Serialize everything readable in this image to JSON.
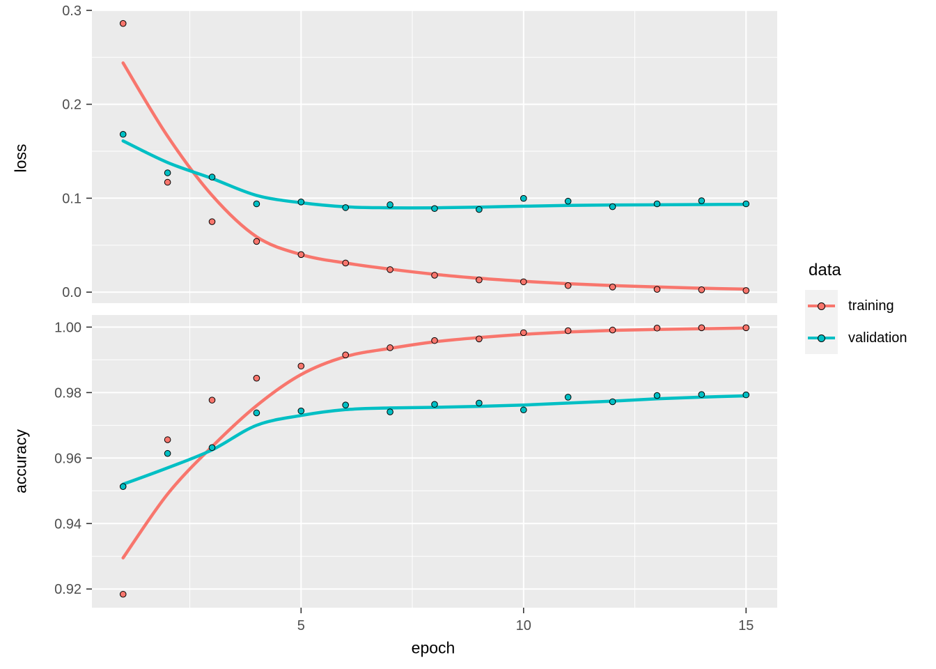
{
  "figure": {
    "kind": "ggplot2 faceted training-history plot"
  },
  "colors": {
    "training": "#F8766D",
    "validation": "#00BFC4",
    "panel_background": "#EBEBEB",
    "gridline": "#FFFFFF",
    "axis_text": "#4D4D4D",
    "tick_mark": "#333333",
    "legend_key_background": "#F2F2F2"
  },
  "legend": {
    "title": "data",
    "entries": [
      {
        "label": "training",
        "color": "#F8766D"
      },
      {
        "label": "validation",
        "color": "#00BFC4"
      }
    ]
  },
  "x_axis": {
    "title": "epoch",
    "tick_labels": [
      "5",
      "10",
      "15"
    ],
    "tick_values": [
      5,
      10,
      15
    ],
    "minor_values": [
      2.5,
      7.5,
      12.5
    ],
    "range": [
      0.3,
      15.7
    ]
  },
  "chart_data": [
    {
      "type": "scatter",
      "panel": "loss",
      "ylabel": "loss",
      "xlabel": "epoch",
      "x": [
        1,
        2,
        3,
        4,
        5,
        6,
        7,
        8,
        9,
        10,
        11,
        12,
        13,
        14,
        15
      ],
      "xlim": [
        0.3,
        15.7
      ],
      "ylim": [
        -0.0117,
        0.3006
      ],
      "yticks": [
        0.0,
        0.1,
        0.2,
        0.3
      ],
      "ytick_labels": [
        "0.0",
        "0.1",
        "0.2",
        "0.3"
      ],
      "yminor": [
        0.05,
        0.15,
        0.25
      ],
      "grid": true,
      "legend_position": "right",
      "series": [
        {
          "name": "training",
          "color": "#F8766D",
          "points": [
            0.286,
            0.117,
            0.075,
            0.054,
            0.04,
            0.031,
            0.024,
            0.018,
            0.013,
            0.011,
            0.007,
            0.0055,
            0.003,
            0.0025,
            0.0017
          ],
          "smooth_fit": [
            0.244,
            0.166,
            0.103,
            0.059,
            0.04,
            0.031,
            0.0245,
            0.019,
            0.0148,
            0.0115,
            0.009,
            0.007,
            0.0055,
            0.0042,
            0.0032
          ]
        },
        {
          "name": "validation",
          "color": "#00BFC4",
          "points": [
            0.168,
            0.127,
            0.1225,
            0.094,
            0.096,
            0.09,
            0.093,
            0.089,
            0.088,
            0.0998,
            0.0968,
            0.091,
            0.094,
            0.0973,
            0.094
          ],
          "smooth_fit": [
            0.161,
            0.138,
            0.121,
            0.103,
            0.0952,
            0.0908,
            0.0898,
            0.0898,
            0.0905,
            0.0915,
            0.0923,
            0.0928,
            0.093,
            0.0933,
            0.0934
          ]
        }
      ]
    },
    {
      "type": "scatter",
      "panel": "accuracy",
      "ylabel": "accuracy",
      "xlabel": "epoch",
      "x": [
        1,
        2,
        3,
        4,
        5,
        6,
        7,
        8,
        9,
        10,
        11,
        12,
        13,
        14,
        15
      ],
      "xlim": [
        0.3,
        15.7
      ],
      "ylim": [
        0.9143,
        1.0037
      ],
      "yticks": [
        0.92,
        0.94,
        0.96,
        0.98,
        1.0
      ],
      "ytick_labels": [
        "0.92",
        "0.94",
        "0.96",
        "0.98",
        "1.00"
      ],
      "yminor": [
        0.93,
        0.95,
        0.97,
        0.99
      ],
      "grid": true,
      "legend_position": "right",
      "series": [
        {
          "name": "training",
          "color": "#F8766D",
          "points": [
            0.9184,
            0.9656,
            0.9777,
            0.9844,
            0.9881,
            0.9915,
            0.9937,
            0.9959,
            0.9964,
            0.9983,
            0.9989,
            0.9991,
            0.9997,
            0.9998,
            0.9998
          ],
          "smooth_fit": [
            0.9295,
            0.949,
            0.9635,
            0.976,
            0.9855,
            0.991,
            0.9935,
            0.9955,
            0.9968,
            0.9978,
            0.9985,
            0.999,
            0.9993,
            0.9995,
            0.9997
          ]
        },
        {
          "name": "validation",
          "color": "#00BFC4",
          "points": [
            0.9513,
            0.9614,
            0.9632,
            0.9738,
            0.9744,
            0.9762,
            0.9741,
            0.9764,
            0.9768,
            0.9747,
            0.9786,
            0.9772,
            0.9791,
            0.9794,
            0.9793
          ],
          "smooth_fit": [
            0.952,
            0.957,
            0.9625,
            0.97,
            0.973,
            0.9748,
            0.9753,
            0.9755,
            0.9758,
            0.9762,
            0.9768,
            0.9774,
            0.9781,
            0.9786,
            0.979
          ]
        }
      ]
    }
  ]
}
